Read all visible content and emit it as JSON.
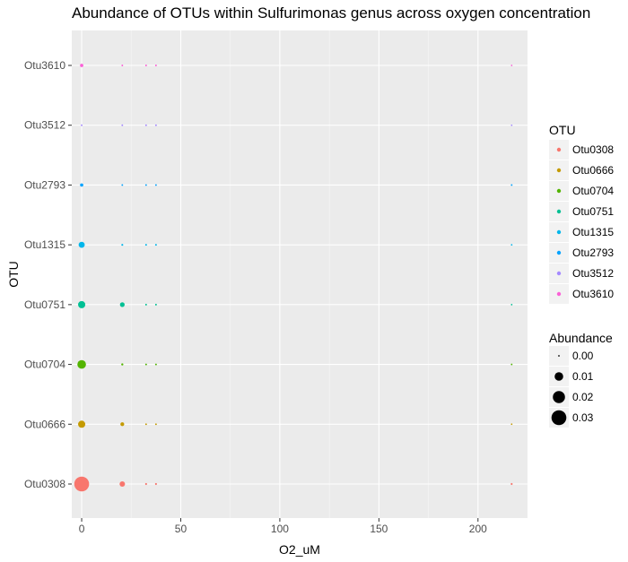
{
  "chart_data": {
    "type": "scatter",
    "title": "Abundance of OTUs within Sulfurimonas genus across oxygen concentration",
    "xlabel": "O2_uM",
    "ylabel": "OTU",
    "xlim": [
      -5,
      225
    ],
    "x_ticks": [
      0,
      50,
      100,
      150,
      200
    ],
    "categories": [
      "Otu0308",
      "Otu0666",
      "Otu0704",
      "Otu0751",
      "Otu1315",
      "Otu2793",
      "Otu3512",
      "Otu3610"
    ],
    "x": [
      0,
      20.5,
      32.5,
      37.5,
      217
    ],
    "series": [
      {
        "name": "Otu0308",
        "color": "#F8766D",
        "abundance": [
          0.03,
          0.004,
          0.0005,
          0.0005,
          0.0005
        ]
      },
      {
        "name": "Otu0666",
        "color": "#C49A00",
        "abundance": [
          0.007,
          0.002,
          0.0004,
          0.0004,
          0.0003
        ]
      },
      {
        "name": "Otu0704",
        "color": "#53B400",
        "abundance": [
          0.01,
          0.0006,
          0.0004,
          0.0004,
          0.0003
        ]
      },
      {
        "name": "Otu0751",
        "color": "#00C094",
        "abundance": [
          0.007,
          0.003,
          0.0004,
          0.0004,
          0.0003
        ]
      },
      {
        "name": "Otu1315",
        "color": "#00B6EB",
        "abundance": [
          0.005,
          0.0005,
          0.0004,
          0.0004,
          0.0003
        ]
      },
      {
        "name": "Otu2793",
        "color": "#06A4FF",
        "abundance": [
          0.0015,
          0.0004,
          0.0004,
          0.0004,
          0.0004
        ]
      },
      {
        "name": "Otu3512",
        "color": "#A58AFF",
        "abundance": [
          0.0004,
          0.0004,
          0.0004,
          0.0004,
          0.0003
        ]
      },
      {
        "name": "Otu3610",
        "color": "#FB61D7",
        "abundance": [
          0.0015,
          0.0004,
          0.0004,
          0.0004,
          0.0003
        ]
      }
    ],
    "size_legend": {
      "title": "Abundance",
      "breaks": [
        0.0,
        0.01,
        0.02,
        0.03
      ],
      "labels": [
        "0.00",
        "0.01",
        "0.02",
        "0.03"
      ]
    },
    "color_legend_title": "OTU",
    "legend_position": "right",
    "grid": true
  }
}
